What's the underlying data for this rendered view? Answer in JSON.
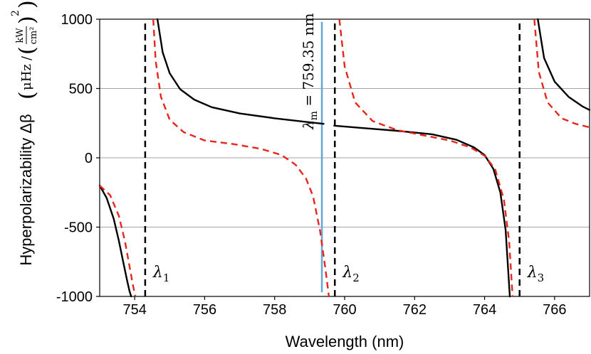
{
  "chart_data": {
    "type": "line",
    "title": "",
    "xlabel": "Wavelength (nm)",
    "ylabel": {
      "prefix": "Hyperpolarizability Δβ",
      "unit_numerator": "μHz",
      "unit_fraction_numerator": "kW",
      "unit_fraction_denominator": "cm²",
      "unit_exponent": "2"
    },
    "xlim": [
      753,
      767
    ],
    "ylim": [
      -1000,
      1000
    ],
    "x_ticks": [
      754,
      756,
      758,
      760,
      762,
      764,
      766
    ],
    "x_tick_labels": [
      "754",
      "756",
      "758",
      "760",
      "762",
      "764",
      "766"
    ],
    "y_ticks": [
      -1000,
      -500,
      0,
      500,
      1000
    ],
    "y_tick_labels": [
      "-1000",
      "-500",
      "0",
      "500",
      "1000"
    ],
    "grid": "horizontal",
    "series": [
      {
        "name": "black solid",
        "color": "#000000",
        "style": "solid",
        "segments": [
          {
            "x": [
              753.0,
              753.2,
              753.4,
              753.55,
              753.68,
              753.78,
              753.85,
              753.9
            ],
            "y": [
              -200,
              -290,
              -440,
              -600,
              -760,
              -880,
              -960,
              -1000
            ]
          },
          {
            "x": [
              754.65,
              754.8,
              755.0,
              755.3,
              755.7,
              756.2,
              757.0,
              758.0,
              758.8,
              759.4
            ],
            "y": [
              1000,
              760,
              610,
              495,
              420,
              365,
              320,
              285,
              262,
              245
            ]
          },
          {
            "x": [
              759.7,
              760.5,
              761.5,
              762.5,
              763.2,
              763.7,
              764.0,
              764.25,
              764.45,
              764.6,
              764.72
            ],
            "y": [
              232,
              215,
              195,
              170,
              130,
              75,
              20,
              -80,
              -250,
              -520,
              -1000
            ]
          },
          {
            "x": [
              765.52,
              765.7,
              766.0,
              766.4,
              766.8,
              767.0
            ],
            "y": [
              1000,
              720,
              550,
              440,
              370,
              345
            ]
          }
        ]
      },
      {
        "name": "red dashed",
        "color": "#e8251c",
        "style": "dashed",
        "segments": [
          {
            "x": [
              753.0,
              753.3,
              753.55,
              753.72,
              753.85,
              753.95,
              754.02
            ],
            "y": [
              -200,
              -270,
              -420,
              -600,
              -780,
              -920,
              -1000
            ]
          },
          {
            "x": [
              754.53,
              754.6,
              754.75,
              755.0,
              755.4,
              756.0,
              756.8,
              757.6,
              758.2,
              758.6,
              758.9,
              759.1,
              759.3,
              759.45,
              759.55
            ],
            "y": [
              1000,
              700,
              440,
              275,
              185,
              125,
              100,
              65,
              20,
              -50,
              -150,
              -280,
              -530,
              -800,
              -1000
            ]
          },
          {
            "x": [
              759.85,
              760.0,
              760.3,
              760.8,
              761.5,
              762.3,
              763.0,
              763.6,
              764.0,
              764.3,
              764.55,
              764.7,
              764.8
            ],
            "y": [
              1000,
              660,
              400,
              265,
              200,
              160,
              125,
              75,
              15,
              -80,
              -300,
              -600,
              -1000
            ]
          },
          {
            "x": [
              765.42,
              765.55,
              765.8,
              766.2,
              766.6,
              767.0
            ],
            "y": [
              1000,
              620,
              400,
              285,
              245,
              220
            ]
          }
        ]
      }
    ],
    "vertical_lines": [
      {
        "name": "λ1",
        "x": 754.3,
        "style": "dashed",
        "color": "#000000",
        "label_base": "λ",
        "label_sub": "1"
      },
      {
        "name": "λ2",
        "x": 759.72,
        "style": "dashed",
        "color": "#000000",
        "label_base": "λ",
        "label_sub": "2"
      },
      {
        "name": "λ3",
        "x": 765.0,
        "style": "dashed",
        "color": "#000000",
        "label_base": "λ",
        "label_sub": "3"
      },
      {
        "name": "λm",
        "x": 759.35,
        "style": "solid",
        "color": "#6aa7d8",
        "y_range": [
          -970,
          980
        ],
        "label_base": "λ",
        "label_sub": "m",
        "label_value": " = 759.35 nm"
      }
    ]
  }
}
